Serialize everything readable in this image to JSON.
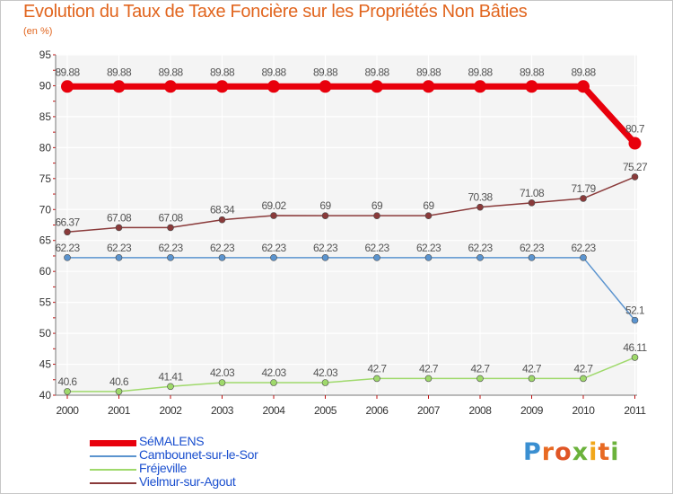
{
  "title": "Evolution du Taux de Taxe Foncière sur les Propriétés Non Bâties",
  "subtitle": "(en %)",
  "logo": "Proxiti",
  "chart_data": {
    "type": "line",
    "title": "Evolution du Taux de Taxe Foncière sur les Propriétés Non Bâties",
    "ylabel": "(en %)",
    "xlabel": "",
    "ylim": [
      40,
      95
    ],
    "yticks": [
      40,
      45,
      50,
      55,
      60,
      65,
      70,
      75,
      80,
      85,
      90,
      95
    ],
    "grid": true,
    "legend_position": "bottom-left",
    "categories": [
      "2000",
      "2001",
      "2002",
      "2003",
      "2004",
      "2005",
      "2006",
      "2007",
      "2008",
      "2009",
      "2010",
      "2011"
    ],
    "series": [
      {
        "name": "SéMALENS",
        "color": "#e8000c",
        "emphasis": true,
        "values": [
          89.88,
          89.88,
          89.88,
          89.88,
          89.88,
          89.88,
          89.88,
          89.88,
          89.88,
          89.88,
          89.88,
          80.7
        ],
        "labels": [
          "89.88",
          "89.88",
          "89.88",
          "89.88",
          "89.88",
          "89.88",
          "89.88",
          "89.88",
          "89.88",
          "89.88",
          "89.88",
          "80.7"
        ]
      },
      {
        "name": "Cambounet-sur-le-Sor",
        "color": "#5b94cf",
        "values": [
          62.23,
          62.23,
          62.23,
          62.23,
          62.23,
          62.23,
          62.23,
          62.23,
          62.23,
          62.23,
          62.23,
          52.1
        ],
        "labels": [
          "62.23",
          "62.23",
          "62.23",
          "62.23",
          "62.23",
          "62.23",
          "62.23",
          "62.23",
          "62.23",
          "62.23",
          "62.23",
          "52.1"
        ]
      },
      {
        "name": "Fréjeville",
        "color": "#9fd96b",
        "values": [
          40.6,
          40.6,
          41.41,
          42.03,
          42.03,
          42.03,
          42.7,
          42.7,
          42.7,
          42.7,
          42.7,
          46.11
        ],
        "labels": [
          "40.6",
          "40.6",
          "41.41",
          "42.03",
          "42.03",
          "42.03",
          "42.7",
          "42.7",
          "42.7",
          "42.7",
          "42.7",
          "46.11"
        ]
      },
      {
        "name": "Vielmur-sur-Agout",
        "color": "#8a3a3a",
        "values": [
          66.37,
          67.08,
          67.08,
          68.34,
          69.02,
          69,
          69,
          69,
          70.38,
          71.08,
          71.79,
          75.27
        ],
        "labels": [
          "66.37",
          "67.08",
          "67.08",
          "68.34",
          "69.02",
          "69",
          "69",
          "69",
          "70.38",
          "71.08",
          "71.79",
          "75.27"
        ]
      }
    ]
  }
}
